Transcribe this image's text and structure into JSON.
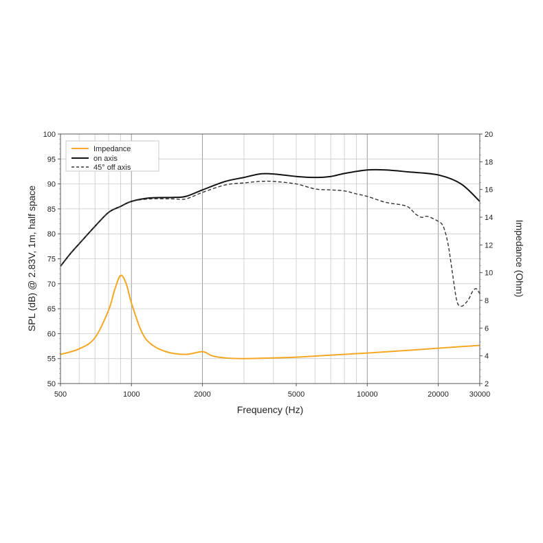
{
  "chart_data": {
    "type": "line",
    "xscale": "log",
    "xlabel": "Frequency (Hz)",
    "ylabel": "SPL (dB) @ 2.83V, 1m, half space",
    "y2label": "Impedance (Ohm)",
    "xlim": [
      500,
      30000
    ],
    "ylim": [
      50,
      100
    ],
    "y2lim": [
      2,
      20
    ],
    "xticks": [
      500,
      1000,
      2000,
      5000,
      10000,
      20000,
      30000
    ],
    "xtick_labels": [
      "500",
      "1000",
      "2000",
      "5000",
      "10000",
      "20000",
      "30000"
    ],
    "yticks": [
      50,
      55,
      60,
      65,
      70,
      75,
      80,
      85,
      90,
      95,
      100
    ],
    "ytick_labels": [
      "50",
      "55",
      "60",
      "65",
      "70",
      "75",
      "80",
      "85",
      "90",
      "95",
      "100"
    ],
    "y2ticks": [
      2,
      4,
      6,
      8,
      10,
      12,
      14,
      16,
      18,
      20
    ],
    "y2tick_labels": [
      "2",
      "4",
      "6",
      "8",
      "10",
      "12",
      "14",
      "16",
      "18",
      "20"
    ],
    "grid": true,
    "legend": {
      "position": "top-left"
    },
    "series": [
      {
        "name": "Impedance",
        "axis": "right",
        "color": "#f5a623",
        "dash": "solid",
        "x": [
          500,
          600,
          700,
          800,
          850,
          900,
          950,
          1000,
          1100,
          1200,
          1400,
          1700,
          2000,
          2200,
          2500,
          3000,
          4000,
          5000,
          7000,
          10000,
          15000,
          20000,
          30000
        ],
        "y": [
          4.1,
          4.5,
          5.3,
          7.3,
          8.8,
          9.8,
          9.2,
          7.8,
          5.8,
          4.9,
          4.3,
          4.1,
          4.3,
          4.0,
          3.85,
          3.8,
          3.85,
          3.9,
          4.05,
          4.2,
          4.4,
          4.55,
          4.75
        ]
      },
      {
        "name": "on axis",
        "axis": "left",
        "color": "#111111",
        "dash": "solid",
        "x": [
          500,
          550,
          600,
          700,
          800,
          900,
          1000,
          1200,
          1500,
          1700,
          2000,
          2500,
          3000,
          3500,
          4000,
          5000,
          6000,
          7000,
          8000,
          10000,
          12000,
          15000,
          20000,
          25000,
          30000
        ],
        "y": [
          73.5,
          76,
          78,
          81.5,
          84.3,
          85.5,
          86.5,
          87.2,
          87.3,
          87.5,
          88.8,
          90.5,
          91.3,
          92.0,
          92.0,
          91.5,
          91.3,
          91.5,
          92.1,
          92.8,
          92.8,
          92.4,
          91.8,
          90.0,
          86.5
        ]
      },
      {
        "name": "45° off axis",
        "axis": "left",
        "color": "#333333",
        "dash": "dashed",
        "x": [
          500,
          550,
          600,
          700,
          800,
          900,
          1000,
          1200,
          1500,
          1700,
          2000,
          2500,
          3000,
          3500,
          4000,
          5000,
          6000,
          7000,
          8000,
          9000,
          10000,
          12000,
          14000,
          15000,
          16000,
          17000,
          18000,
          20000,
          21000,
          22000,
          23000,
          24000,
          25000,
          26000,
          27000,
          28000,
          29000,
          30000
        ],
        "y": [
          73.5,
          76,
          78,
          81.5,
          84.3,
          85.5,
          86.5,
          87.0,
          87.0,
          87.0,
          88.3,
          89.8,
          90.2,
          90.5,
          90.5,
          90.0,
          89.0,
          88.8,
          88.6,
          88.0,
          87.5,
          86.3,
          85.8,
          85.3,
          84.0,
          83.3,
          83.5,
          82.5,
          81.5,
          78.0,
          72.0,
          66.5,
          65.5,
          66.0,
          67.0,
          68.5,
          69.0,
          68.0
        ]
      }
    ]
  }
}
